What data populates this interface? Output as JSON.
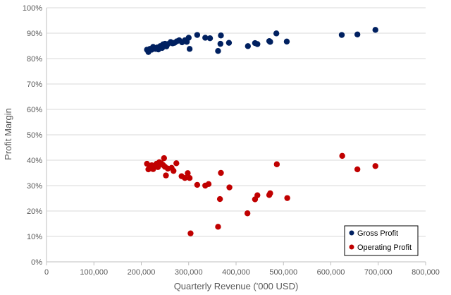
{
  "chart_data": {
    "type": "scatter",
    "title": "",
    "xlabel": "Quarterly Revenue ('000 USD)",
    "ylabel": "Profit Margin",
    "xlim": [
      0,
      800000
    ],
    "ylim": [
      0,
      1
    ],
    "x_ticks": [
      0,
      100000,
      200000,
      300000,
      400000,
      500000,
      600000,
      700000,
      800000
    ],
    "x_tick_labels": [
      "0",
      "100,000",
      "200,000",
      "300,000",
      "400,000",
      "500,000",
      "600,000",
      "700,000",
      "800,000"
    ],
    "y_ticks": [
      0,
      0.1,
      0.2,
      0.3,
      0.4,
      0.5,
      0.6,
      0.7,
      0.8,
      0.9,
      1.0
    ],
    "y_tick_labels": [
      "0%",
      "10%",
      "20%",
      "30%",
      "40%",
      "50%",
      "60%",
      "70%",
      "80%",
      "90%",
      "100%"
    ],
    "grid": "horizontal",
    "legend": "bottom-right",
    "series": [
      {
        "name": "Gross Profit",
        "color": "#002060",
        "x": [
          212000,
          215000,
          218000,
          222000,
          225000,
          230000,
          234000,
          236000,
          240000,
          244000,
          246000,
          248000,
          250000,
          253000,
          256000,
          262000,
          266000,
          270000,
          275000,
          280000,
          286000,
          292000,
          296000,
          300000,
          302000,
          318000,
          335000,
          345000,
          362000,
          367000,
          368000,
          385000,
          425000,
          440000,
          445000,
          470000,
          472000,
          485000,
          507000,
          623000,
          656000,
          694000
        ],
        "y": [
          0.835,
          0.826,
          0.838,
          0.835,
          0.846,
          0.838,
          0.844,
          0.836,
          0.849,
          0.842,
          0.856,
          0.852,
          0.858,
          0.848,
          0.857,
          0.865,
          0.86,
          0.862,
          0.868,
          0.872,
          0.864,
          0.872,
          0.866,
          0.882,
          0.838,
          0.893,
          0.882,
          0.88,
          0.83,
          0.858,
          0.891,
          0.862,
          0.849,
          0.861,
          0.857,
          0.869,
          0.866,
          0.899,
          0.867,
          0.893,
          0.895,
          0.913
        ]
      },
      {
        "name": "Operating Profit",
        "color": "#C00000",
        "x": [
          212000,
          215000,
          218000,
          222000,
          225000,
          228000,
          232000,
          235000,
          238000,
          242000,
          246000,
          248000,
          250000,
          252000,
          256000,
          264000,
          268000,
          274000,
          285000,
          292000,
          298000,
          302000,
          304000,
          318000,
          335000,
          342000,
          362000,
          366000,
          368000,
          386000,
          424000,
          440000,
          445000,
          470000,
          472000,
          486000,
          508000,
          624000,
          656000,
          694000
        ],
        "y": [
          0.386,
          0.364,
          0.368,
          0.38,
          0.365,
          0.378,
          0.386,
          0.373,
          0.392,
          0.388,
          0.381,
          0.408,
          0.374,
          0.34,
          0.367,
          0.37,
          0.358,
          0.388,
          0.337,
          0.33,
          0.349,
          0.33,
          0.112,
          0.303,
          0.3,
          0.306,
          0.138,
          0.247,
          0.35,
          0.293,
          0.191,
          0.246,
          0.262,
          0.263,
          0.27,
          0.384,
          0.251,
          0.417,
          0.364,
          0.377
        ]
      }
    ]
  }
}
